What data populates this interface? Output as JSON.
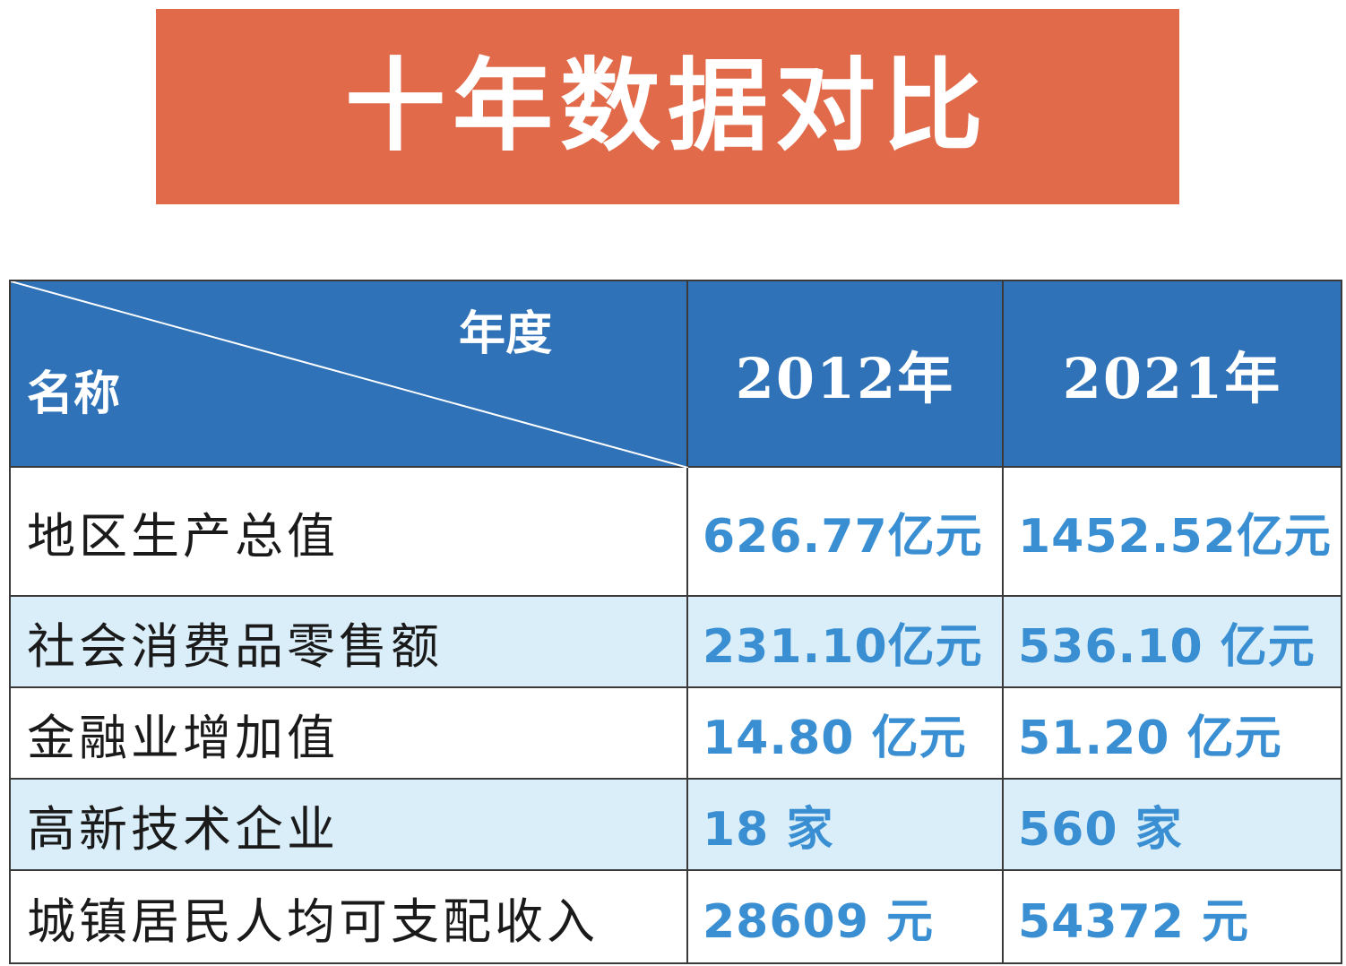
{
  "banner": {
    "title": "十年数据对比"
  },
  "chart_data": {
    "type": "table",
    "corner": {
      "column_label": "年度",
      "row_label": "名称"
    },
    "columns": [
      "2012年",
      "2021年"
    ],
    "rows": [
      {
        "name": "地区生产总值",
        "values": [
          "626.77亿元",
          "1452.52亿元"
        ]
      },
      {
        "name": "社会消费品零售额",
        "values": [
          "231.10亿元",
          "536.10 亿元"
        ]
      },
      {
        "name": "金融业增加值",
        "values": [
          "14.80 亿元",
          "51.20 亿元"
        ]
      },
      {
        "name": "高新技术企业",
        "values": [
          "18 家",
          "560 家"
        ]
      },
      {
        "name": "城镇居民人均可支配收入",
        "values": [
          "28609 元",
          "54372 元"
        ]
      }
    ]
  },
  "colors": {
    "banner_bg": "#e06a49",
    "header_bg": "#2f72b8",
    "value_text": "#3a8fd3",
    "stripe_bg": "#daeef9"
  }
}
